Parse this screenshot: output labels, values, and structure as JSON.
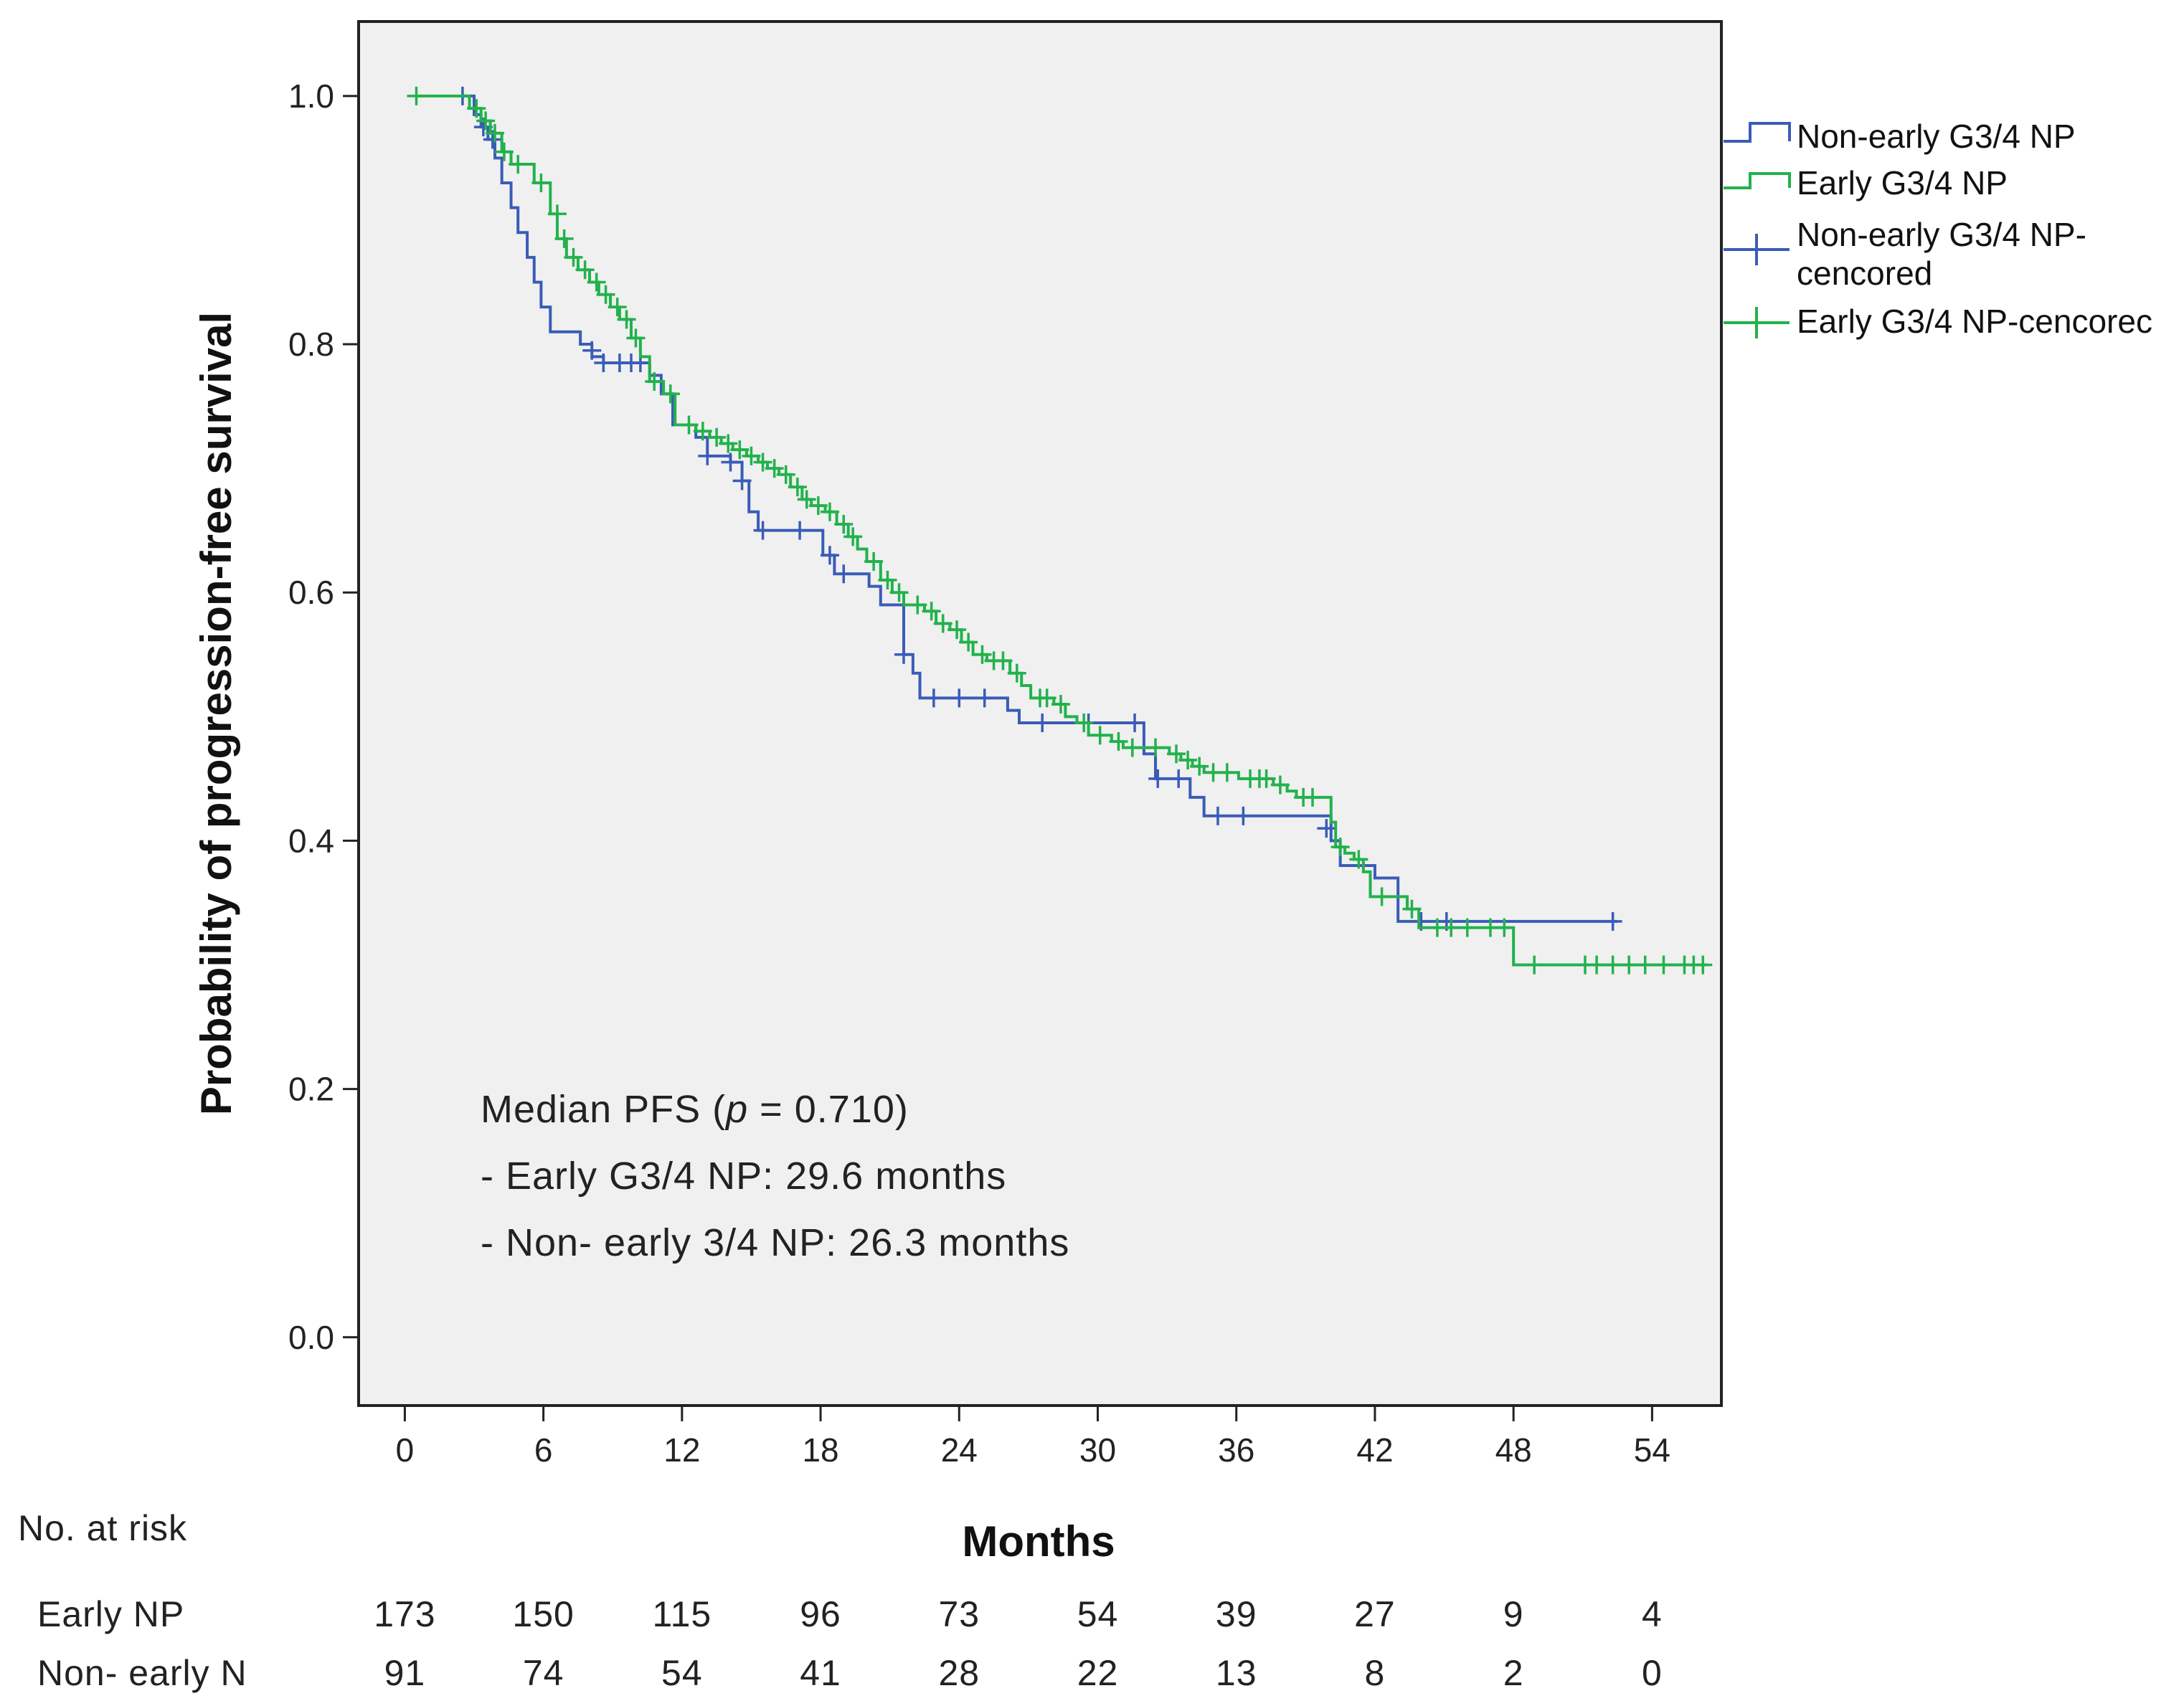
{
  "chart_data": {
    "type": "line",
    "subtype": "kaplan-meier",
    "xlabel": "Months",
    "ylabel": "Probability of progression-free survival",
    "xlim": [
      -2,
      57
    ],
    "ylim": [
      -0.055,
      1.06
    ],
    "x_ticks": [
      0,
      6,
      12,
      18,
      24,
      30,
      36,
      42,
      48,
      54
    ],
    "x_tick_labels": [
      "0",
      "6",
      "12",
      "18",
      "24",
      "30",
      "36",
      "42",
      "48",
      "54"
    ],
    "y_ticks": [
      0,
      0.2,
      0.4,
      0.6,
      0.8,
      1.0
    ],
    "y_tick_labels": [
      "0.0",
      "0.2",
      "0.4",
      "0.6",
      "0.8",
      "1.0"
    ],
    "legend": {
      "position": "right",
      "entries": [
        {
          "label": "Non-early G3/4 NP",
          "series": "non_early",
          "kind": "line"
        },
        {
          "label": "Early G3/4 NP",
          "series": "early",
          "kind": "line"
        },
        {
          "label_line1": "Non-early G3/4 NP-",
          "label_line2": "cencored",
          "series": "non_early",
          "kind": "censor"
        },
        {
          "label": "Early G3/4 NP-cencorec",
          "series": "early",
          "kind": "censor"
        }
      ]
    },
    "annotation": {
      "line1_prefix": "Median PFS (",
      "line1_p": "p",
      "line1_suffix": " = 0.710)",
      "line2": "- Early G3/4 NP: 29.6 months",
      "line3": "- Non- early 3/4 NP: 26.3 months"
    },
    "series": [
      {
        "key": "early",
        "name": "Early G3/4 NP",
        "color": "#22b24c",
        "steps": [
          [
            0.5,
            1.0
          ],
          [
            2.8,
            0.99
          ],
          [
            3.3,
            0.98
          ],
          [
            3.7,
            0.97
          ],
          [
            4.2,
            0.955
          ],
          [
            4.6,
            0.945
          ],
          [
            5.6,
            0.93
          ],
          [
            6.3,
            0.905
          ],
          [
            6.6,
            0.885
          ],
          [
            7.0,
            0.87
          ],
          [
            7.5,
            0.86
          ],
          [
            8.0,
            0.85
          ],
          [
            8.4,
            0.84
          ],
          [
            8.9,
            0.83
          ],
          [
            9.3,
            0.82
          ],
          [
            9.8,
            0.805
          ],
          [
            10.2,
            0.79
          ],
          [
            10.6,
            0.77
          ],
          [
            11.2,
            0.76
          ],
          [
            11.7,
            0.735
          ],
          [
            12.6,
            0.73
          ],
          [
            13.2,
            0.725
          ],
          [
            13.7,
            0.72
          ],
          [
            14.2,
            0.715
          ],
          [
            14.8,
            0.71
          ],
          [
            15.3,
            0.705
          ],
          [
            15.7,
            0.7
          ],
          [
            16.2,
            0.695
          ],
          [
            16.7,
            0.685
          ],
          [
            17.2,
            0.675
          ],
          [
            17.6,
            0.67
          ],
          [
            18.2,
            0.665
          ],
          [
            18.7,
            0.655
          ],
          [
            19.2,
            0.645
          ],
          [
            19.6,
            0.635
          ],
          [
            20.0,
            0.625
          ],
          [
            20.6,
            0.61
          ],
          [
            21.1,
            0.6
          ],
          [
            21.6,
            0.59
          ],
          [
            22.5,
            0.585
          ],
          [
            23.0,
            0.575
          ],
          [
            23.6,
            0.57
          ],
          [
            24.1,
            0.56
          ],
          [
            24.6,
            0.55
          ],
          [
            25.2,
            0.545
          ],
          [
            26.2,
            0.535
          ],
          [
            26.7,
            0.525
          ],
          [
            27.1,
            0.515
          ],
          [
            28.1,
            0.51
          ],
          [
            28.6,
            0.5
          ],
          [
            29.1,
            0.495
          ],
          [
            29.6,
            0.485
          ],
          [
            30.6,
            0.48
          ],
          [
            31.1,
            0.475
          ],
          [
            33.1,
            0.47
          ],
          [
            33.6,
            0.465
          ],
          [
            34.1,
            0.46
          ],
          [
            34.6,
            0.455
          ],
          [
            36.1,
            0.45
          ],
          [
            37.6,
            0.445
          ],
          [
            38.2,
            0.44
          ],
          [
            38.6,
            0.435
          ],
          [
            40.1,
            0.415
          ],
          [
            40.3,
            0.395
          ],
          [
            40.7,
            0.39
          ],
          [
            41.1,
            0.385
          ],
          [
            41.5,
            0.375
          ],
          [
            41.8,
            0.355
          ],
          [
            43.4,
            0.345
          ],
          [
            43.9,
            0.33
          ],
          [
            48.0,
            0.3
          ],
          [
            56.4,
            0.3
          ]
        ],
        "censors": [
          [
            0.5,
            1.0
          ],
          [
            3.1,
            0.99
          ],
          [
            3.5,
            0.98
          ],
          [
            3.9,
            0.97
          ],
          [
            4.3,
            0.955
          ],
          [
            4.9,
            0.945
          ],
          [
            5.9,
            0.93
          ],
          [
            6.6,
            0.905
          ],
          [
            6.9,
            0.885
          ],
          [
            7.3,
            0.87
          ],
          [
            7.8,
            0.86
          ],
          [
            8.3,
            0.85
          ],
          [
            8.7,
            0.84
          ],
          [
            9.2,
            0.83
          ],
          [
            9.6,
            0.82
          ],
          [
            10.0,
            0.805
          ],
          [
            10.8,
            0.77
          ],
          [
            11.5,
            0.76
          ],
          [
            12.3,
            0.735
          ],
          [
            12.9,
            0.73
          ],
          [
            13.5,
            0.725
          ],
          [
            14.0,
            0.72
          ],
          [
            14.5,
            0.715
          ],
          [
            15.0,
            0.71
          ],
          [
            15.5,
            0.705
          ],
          [
            16.0,
            0.7
          ],
          [
            16.5,
            0.695
          ],
          [
            17.0,
            0.685
          ],
          [
            17.4,
            0.675
          ],
          [
            17.9,
            0.67
          ],
          [
            18.4,
            0.665
          ],
          [
            19.0,
            0.655
          ],
          [
            19.4,
            0.645
          ],
          [
            20.3,
            0.625
          ],
          [
            20.9,
            0.61
          ],
          [
            21.4,
            0.6
          ],
          [
            22.2,
            0.59
          ],
          [
            22.8,
            0.585
          ],
          [
            23.3,
            0.575
          ],
          [
            23.9,
            0.57
          ],
          [
            24.4,
            0.56
          ],
          [
            25.0,
            0.55
          ],
          [
            25.5,
            0.545
          ],
          [
            25.9,
            0.545
          ],
          [
            26.5,
            0.535
          ],
          [
            27.5,
            0.515
          ],
          [
            27.8,
            0.515
          ],
          [
            28.4,
            0.51
          ],
          [
            29.4,
            0.495
          ],
          [
            30.1,
            0.485
          ],
          [
            30.9,
            0.48
          ],
          [
            31.5,
            0.475
          ],
          [
            32.5,
            0.475
          ],
          [
            33.4,
            0.47
          ],
          [
            33.9,
            0.465
          ],
          [
            34.4,
            0.46
          ],
          [
            35.0,
            0.455
          ],
          [
            35.6,
            0.455
          ],
          [
            36.6,
            0.45
          ],
          [
            37.0,
            0.45
          ],
          [
            37.3,
            0.45
          ],
          [
            37.9,
            0.445
          ],
          [
            38.9,
            0.435
          ],
          [
            39.3,
            0.435
          ],
          [
            40.5,
            0.395
          ],
          [
            41.3,
            0.385
          ],
          [
            42.3,
            0.355
          ],
          [
            43.6,
            0.345
          ],
          [
            44.7,
            0.33
          ],
          [
            45.3,
            0.33
          ],
          [
            46.0,
            0.33
          ],
          [
            47.0,
            0.33
          ],
          [
            47.6,
            0.33
          ],
          [
            48.9,
            0.3
          ],
          [
            51.1,
            0.3
          ],
          [
            51.6,
            0.3
          ],
          [
            52.3,
            0.3
          ],
          [
            53.0,
            0.3
          ],
          [
            53.7,
            0.3
          ],
          [
            54.5,
            0.3
          ],
          [
            55.4,
            0.3
          ],
          [
            55.8,
            0.3
          ],
          [
            56.2,
            0.3
          ]
        ]
      },
      {
        "key": "non_early",
        "name": "Non-early G3/4 NP",
        "color": "#3a5cb8",
        "steps": [
          [
            2.5,
            1.0
          ],
          [
            3.0,
            0.985
          ],
          [
            3.3,
            0.975
          ],
          [
            3.6,
            0.965
          ],
          [
            3.9,
            0.95
          ],
          [
            4.2,
            0.93
          ],
          [
            4.6,
            0.91
          ],
          [
            4.9,
            0.89
          ],
          [
            5.3,
            0.87
          ],
          [
            5.6,
            0.85
          ],
          [
            5.9,
            0.83
          ],
          [
            6.3,
            0.81
          ],
          [
            7.6,
            0.8
          ],
          [
            8.1,
            0.79
          ],
          [
            8.6,
            0.785
          ],
          [
            10.6,
            0.775
          ],
          [
            11.1,
            0.76
          ],
          [
            11.6,
            0.735
          ],
          [
            12.6,
            0.725
          ],
          [
            13.1,
            0.71
          ],
          [
            14.1,
            0.705
          ],
          [
            14.6,
            0.69
          ],
          [
            14.9,
            0.665
          ],
          [
            15.3,
            0.65
          ],
          [
            18.1,
            0.63
          ],
          [
            18.6,
            0.615
          ],
          [
            19.6,
            0.615
          ],
          [
            20.1,
            0.605
          ],
          [
            20.6,
            0.59
          ],
          [
            21.6,
            0.55
          ],
          [
            22.0,
            0.535
          ],
          [
            22.3,
            0.515
          ],
          [
            26.1,
            0.505
          ],
          [
            26.6,
            0.495
          ],
          [
            29.6,
            0.495
          ],
          [
            32.0,
            0.47
          ],
          [
            32.5,
            0.45
          ],
          [
            34.0,
            0.435
          ],
          [
            34.6,
            0.42
          ],
          [
            40.1,
            0.4
          ],
          [
            40.5,
            0.38
          ],
          [
            42.0,
            0.37
          ],
          [
            43.0,
            0.335
          ],
          [
            52.5,
            0.335
          ]
        ],
        "censors": [
          [
            2.5,
            1.0
          ],
          [
            3.4,
            0.975
          ],
          [
            3.8,
            0.965
          ],
          [
            8.1,
            0.795
          ],
          [
            8.6,
            0.785
          ],
          [
            9.3,
            0.785
          ],
          [
            9.8,
            0.785
          ],
          [
            10.2,
            0.785
          ],
          [
            11.5,
            0.76
          ],
          [
            13.1,
            0.71
          ],
          [
            14.1,
            0.705
          ],
          [
            14.6,
            0.69
          ],
          [
            15.5,
            0.65
          ],
          [
            17.1,
            0.65
          ],
          [
            18.4,
            0.63
          ],
          [
            19.0,
            0.615
          ],
          [
            21.6,
            0.55
          ],
          [
            22.9,
            0.515
          ],
          [
            24.0,
            0.515
          ],
          [
            25.1,
            0.515
          ],
          [
            27.6,
            0.495
          ],
          [
            29.6,
            0.495
          ],
          [
            31.6,
            0.495
          ],
          [
            32.6,
            0.45
          ],
          [
            33.5,
            0.45
          ],
          [
            35.2,
            0.42
          ],
          [
            36.3,
            0.42
          ],
          [
            39.9,
            0.41
          ],
          [
            44.0,
            0.335
          ],
          [
            45.1,
            0.335
          ],
          [
            52.3,
            0.335
          ]
        ]
      }
    ],
    "risk_table": {
      "title": "No. at risk",
      "rows": [
        {
          "label": "Early NP",
          "values": [
            "173",
            "150",
            "115",
            "96",
            "73",
            "54",
            "39",
            "27",
            "9",
            "4"
          ]
        },
        {
          "label": "Non- early N",
          "values": [
            "91",
            "74",
            "54",
            "41",
            "28",
            "22",
            "13",
            "8",
            "2",
            "0"
          ]
        }
      ]
    }
  }
}
